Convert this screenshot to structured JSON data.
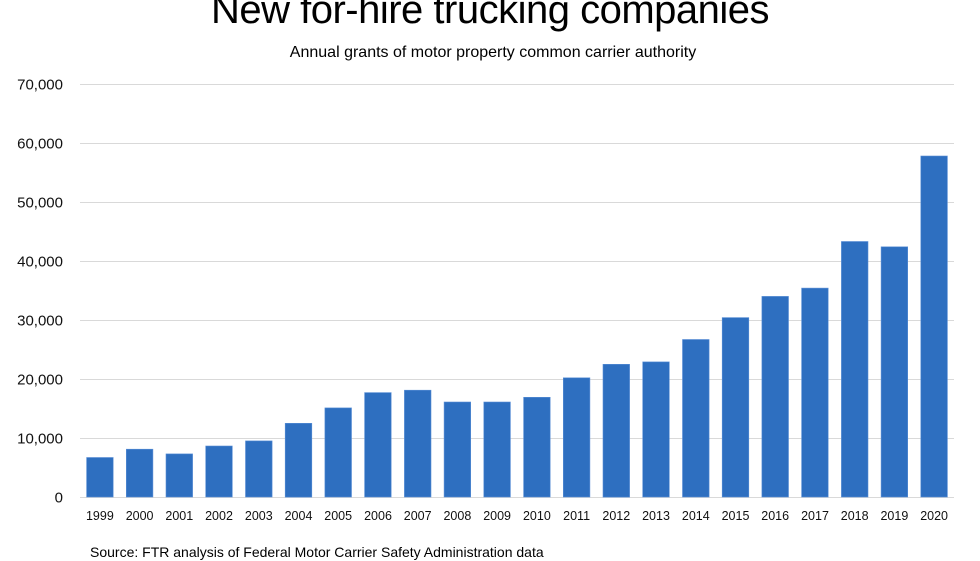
{
  "chart_data": {
    "type": "bar",
    "title": "New for-hire trucking companies",
    "subtitle": "Annual grants of motor property common carrier authority",
    "source": "Source: FTR analysis of Federal Motor Carrier Safety Administration data",
    "xlabel": "",
    "ylabel": "",
    "categories": [
      "1999",
      "2000",
      "2001",
      "2002",
      "2003",
      "2004",
      "2005",
      "2006",
      "2007",
      "2008",
      "2009",
      "2010",
      "2011",
      "2012",
      "2013",
      "2014",
      "2015",
      "2016",
      "2017",
      "2018",
      "2019",
      "2020"
    ],
    "values": [
      6700,
      8100,
      7300,
      8650,
      9500,
      12500,
      15100,
      17700,
      18100,
      16100,
      16100,
      16900,
      20200,
      22500,
      22900,
      26700,
      30400,
      34000,
      35400,
      43300,
      42400,
      57800
    ],
    "ylim": [
      0,
      70000
    ],
    "yticks": [
      0,
      10000,
      20000,
      30000,
      40000,
      50000,
      60000,
      70000
    ],
    "ytick_labels": [
      "0",
      "10,000",
      "20,000",
      "30,000",
      "40,000",
      "50,000",
      "60,000",
      "70,000"
    ],
    "grid": true,
    "legend": "none",
    "bar_color": "#2E6FC0",
    "grid_color": "#D9D9D9"
  }
}
